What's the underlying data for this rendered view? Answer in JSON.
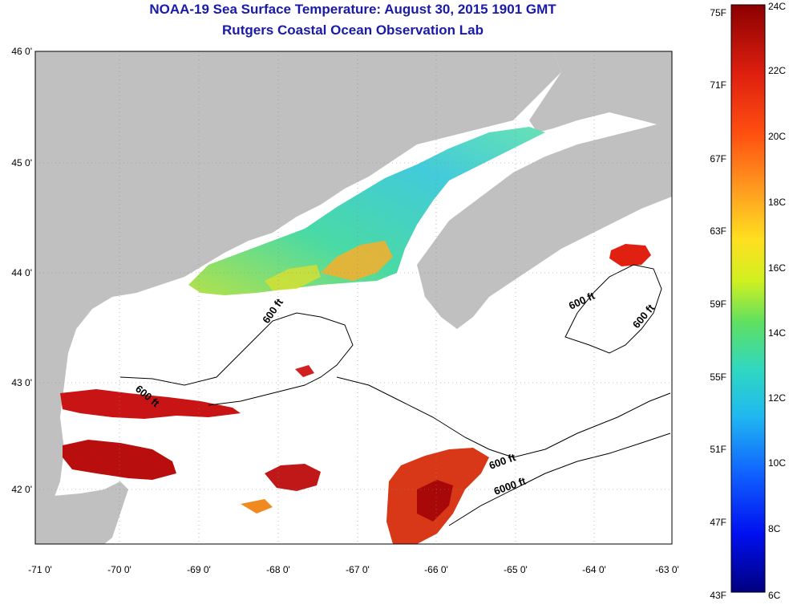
{
  "header": {
    "title": "NOAA-19 Sea Surface Temperature:  August 30, 2015 1901 GMT",
    "subtitle": "Rutgers Coastal Ocean Observation Lab"
  },
  "axes": {
    "lat_ticks": [
      "46 0'",
      "45 0'",
      "44 0'",
      "43 0'",
      "42 0'"
    ],
    "lon_ticks": [
      "-71 0'",
      "-70 0'",
      "-69 0'",
      "-68 0'",
      "-67 0'",
      "-66 0'",
      "-65 0'",
      "-64 0'",
      "-63 0'"
    ]
  },
  "contour_labels": {
    "c1": "600 ft",
    "c2": "600 ft",
    "c3": "600 ft",
    "c4": "6000 ft",
    "c5": "600 ft",
    "c6": "600 ft"
  },
  "colorbar": {
    "fahrenheit": [
      "75F",
      "71F",
      "67F",
      "63F",
      "59F",
      "55F",
      "51F",
      "47F",
      "43F"
    ],
    "celsius": [
      "24C",
      "22C",
      "20C",
      "18C",
      "16C",
      "14C",
      "12C",
      "10C",
      "8C",
      "6C"
    ]
  },
  "colors": {
    "title": "#1a1aa8",
    "land": "#c0c0c0",
    "water": "#ffffff",
    "warm": "#c01010",
    "cool": "#30d0c0"
  }
}
